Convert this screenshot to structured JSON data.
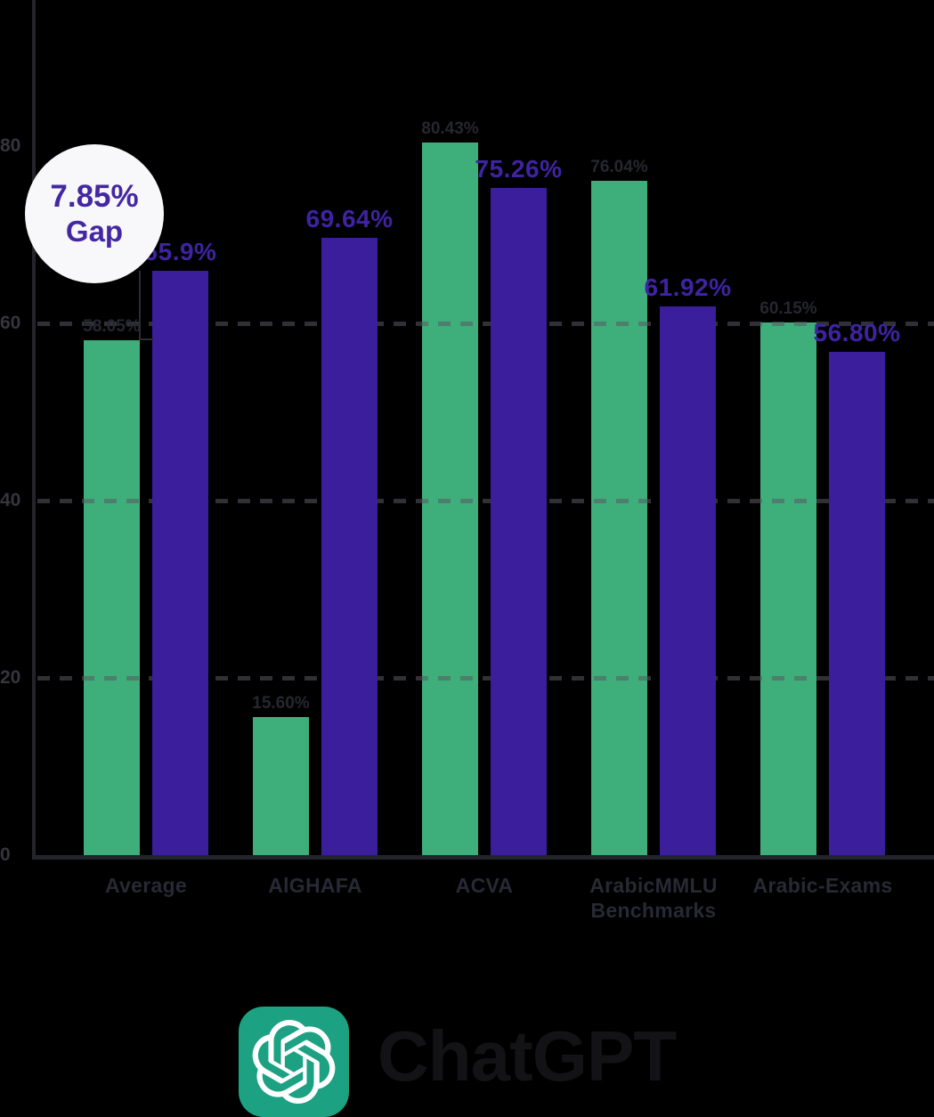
{
  "background": "#000000",
  "chart_data": {
    "type": "bar",
    "title": "",
    "categories": [
      [
        "Average"
      ],
      [
        "AlGHAFA"
      ],
      [
        "ACVA"
      ],
      [
        "ArabicMMLU",
        "Benchmarks"
      ],
      [
        "Arabic-Exams"
      ]
    ],
    "series": [
      {
        "name": "green",
        "color": "#3EAE7A",
        "label_color": "#26272F",
        "values": [
          58.05,
          15.6,
          80.43,
          76.04,
          60.15
        ],
        "labels": [
          "58.05%",
          "15.60%",
          "80.43%",
          "76.04%",
          "60.15%"
        ]
      },
      {
        "name": "purple",
        "color": "#3A1E9B",
        "label_color": "#3F23A2",
        "values": [
          65.9,
          69.64,
          75.26,
          61.92,
          56.8
        ],
        "labels": [
          "65.9%",
          "69.64%",
          "75.26%",
          "61.92%",
          "56.80%"
        ]
      }
    ],
    "ylim": [
      0,
      100
    ],
    "yticks": [
      0,
      20,
      40,
      60,
      80
    ],
    "gridlines_at": [
      20,
      40,
      60
    ],
    "grid_style": "dashed",
    "legend": "none"
  },
  "annotation": {
    "line1": "7.85%",
    "line2": "Gap",
    "text_color": "#4527A3",
    "bg_color": "#F8F8FA"
  },
  "footer": {
    "brand": "ChatGPT",
    "logo_bg": "#1CA183",
    "logo_icon": "openai-logo-icon"
  }
}
